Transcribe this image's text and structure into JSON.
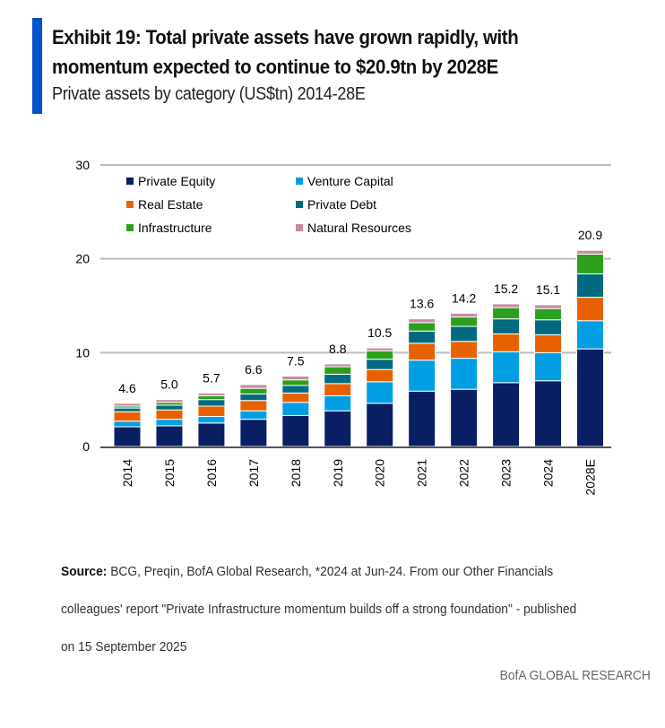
{
  "header": {
    "accent_color": "#0052CC",
    "title_line1": "Exhibit 19: Total private assets have grown rapidly, with",
    "title_line2": "momentum expected to continue to $20.9tn by 2028E",
    "subtitle": "Private assets by category (US$tn) 2014-28E"
  },
  "footer": {
    "source_label": "Source:",
    "source_line1": " BCG, Preqin, BofA Global Research, *2024 at Jun-24. From our Other Financials",
    "source_line2": "colleagues' report \"Private Infrastructure momentum builds off a strong foundation\" - published",
    "source_line3": "on 15 September 2025",
    "brand": "BofA GLOBAL RESEARCH"
  },
  "chart_data": {
    "type": "bar",
    "stacked": true,
    "title": "Private assets by category (US$tn) 2014-28E",
    "xlabel": "",
    "ylabel": "",
    "ylim": [
      0,
      30
    ],
    "yticks": [
      0,
      10,
      20,
      30
    ],
    "grid": true,
    "legend_position": "top-left",
    "categories": [
      "2014",
      "2015",
      "2016",
      "2017",
      "2018",
      "2019",
      "2020",
      "2021",
      "2022",
      "2023",
      "2024",
      "2028E"
    ],
    "totals": [
      "4.6",
      "5.0",
      "5.7",
      "6.6",
      "7.5",
      "8.8",
      "10.5",
      "13.6",
      "14.2",
      "15.2",
      "15.1",
      "20.9"
    ],
    "series": [
      {
        "name": "Private Equity",
        "color": "#0A1F63",
        "values": [
          2.1,
          2.2,
          2.5,
          2.9,
          3.3,
          3.8,
          4.6,
          5.9,
          6.1,
          6.8,
          7.0,
          10.4
        ]
      },
      {
        "name": "Venture Capital",
        "color": "#009FE3",
        "values": [
          0.6,
          0.7,
          0.7,
          0.9,
          1.4,
          1.6,
          2.3,
          3.3,
          3.3,
          3.3,
          3.0,
          3.0
        ]
      },
      {
        "name": "Real Estate",
        "color": "#E86100",
        "values": [
          1.0,
          1.0,
          1.1,
          1.1,
          1.0,
          1.3,
          1.3,
          1.8,
          1.8,
          1.9,
          1.9,
          2.5
        ]
      },
      {
        "name": "Private Debt",
        "color": "#006B80",
        "values": [
          0.4,
          0.5,
          0.7,
          0.7,
          0.8,
          1.0,
          1.1,
          1.3,
          1.6,
          1.6,
          1.6,
          2.5
        ]
      },
      {
        "name": "Infrastructure",
        "color": "#2CA01C",
        "values": [
          0.2,
          0.3,
          0.4,
          0.6,
          0.6,
          0.8,
          0.9,
          0.9,
          1.0,
          1.2,
          1.2,
          2.1
        ]
      },
      {
        "name": "Natural Resources",
        "color": "#C88AA3",
        "values": [
          0.3,
          0.3,
          0.3,
          0.4,
          0.4,
          0.3,
          0.3,
          0.4,
          0.4,
          0.4,
          0.4,
          0.4
        ]
      }
    ]
  }
}
